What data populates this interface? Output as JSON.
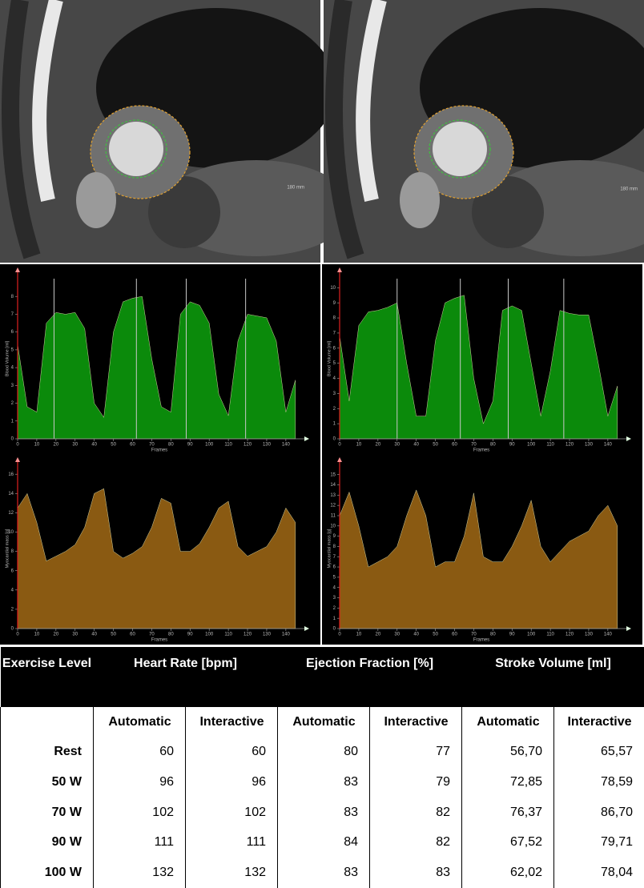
{
  "images": [
    {
      "scale_label": "180 mm"
    },
    {
      "scale_label": "180 mm"
    }
  ],
  "chart_data": [
    {
      "type": "area",
      "color": "#0b8a0b",
      "ylabel": "Blood Volume [ml]",
      "xlabel": "Frames",
      "x": [
        0,
        5,
        10,
        15,
        20,
        25,
        30,
        35,
        40,
        45,
        50,
        55,
        60,
        65,
        70,
        75,
        80,
        85,
        90,
        95,
        100,
        105,
        110,
        115,
        120,
        125,
        130,
        135,
        140,
        145
      ],
      "values": [
        5.3,
        1.8,
        1.5,
        6.5,
        7.1,
        7.0,
        7.1,
        6.2,
        2.0,
        1.2,
        6.0,
        7.7,
        7.9,
        8.0,
        4.5,
        1.8,
        1.5,
        7.0,
        7.7,
        7.5,
        6.5,
        2.5,
        1.3,
        5.5,
        7.0,
        6.9,
        6.8,
        5.5,
        1.5,
        3.3
      ],
      "markers": [
        19,
        62,
        88,
        119
      ],
      "xlim": [
        0,
        148
      ],
      "ylim": [
        0,
        9
      ],
      "xticks": [
        0,
        10,
        20,
        30,
        40,
        50,
        60,
        70,
        80,
        90,
        100,
        110,
        120,
        130,
        140
      ],
      "yticks": [
        0,
        1,
        2,
        3,
        4,
        5,
        6,
        7,
        8
      ]
    },
    {
      "type": "area",
      "color": "#0b8a0b",
      "ylabel": "Blood Volume [ml]",
      "xlabel": "Frames",
      "x": [
        0,
        5,
        10,
        15,
        20,
        25,
        30,
        35,
        40,
        45,
        50,
        55,
        60,
        65,
        70,
        75,
        80,
        85,
        90,
        95,
        100,
        105,
        110,
        115,
        120,
        125,
        130,
        135,
        140,
        145
      ],
      "values": [
        6.8,
        2.5,
        7.5,
        8.4,
        8.5,
        8.7,
        9.0,
        5.0,
        1.5,
        1.5,
        6.5,
        9.0,
        9.3,
        9.5,
        4.0,
        1.0,
        2.5,
        8.5,
        8.8,
        8.5,
        5.0,
        1.5,
        4.5,
        8.5,
        8.3,
        8.2,
        8.2,
        5.0,
        1.5,
        3.5
      ],
      "markers": [
        30,
        63,
        88,
        117
      ],
      "xlim": [
        0,
        148
      ],
      "ylim": [
        0,
        10.6
      ],
      "xticks": [
        0,
        10,
        20,
        30,
        40,
        50,
        60,
        70,
        80,
        90,
        100,
        110,
        120,
        130,
        140
      ],
      "yticks": [
        0,
        1,
        2,
        3,
        4,
        5,
        6,
        7,
        8,
        9,
        10
      ]
    },
    {
      "type": "area",
      "color": "#8a5a12",
      "ylabel": "Myocardial mass [g]",
      "xlabel": "Frames",
      "x": [
        0,
        5,
        10,
        15,
        20,
        25,
        30,
        35,
        40,
        45,
        50,
        55,
        60,
        65,
        70,
        75,
        80,
        85,
        90,
        95,
        100,
        105,
        110,
        115,
        120,
        125,
        130,
        135,
        140,
        145
      ],
      "values": [
        12.5,
        14.0,
        11.0,
        7.0,
        7.5,
        8.0,
        8.7,
        10.5,
        14.0,
        14.5,
        8.0,
        7.3,
        7.8,
        8.5,
        10.5,
        13.5,
        13.0,
        8.0,
        8.0,
        8.8,
        10.5,
        12.5,
        13.2,
        8.5,
        7.5,
        8.0,
        8.5,
        10.0,
        12.5,
        11.0
      ],
      "xlim": [
        0,
        148
      ],
      "ylim": [
        0,
        16.6
      ],
      "xticks": [
        0,
        10,
        20,
        30,
        40,
        50,
        60,
        70,
        80,
        90,
        100,
        110,
        120,
        130,
        140
      ],
      "yticks": [
        0,
        2,
        4,
        6,
        8,
        10,
        12,
        14,
        16
      ]
    },
    {
      "type": "area",
      "color": "#8a5a12",
      "ylabel": "Myocardial mass [g]",
      "xlabel": "Frames",
      "x": [
        0,
        5,
        10,
        15,
        20,
        25,
        30,
        35,
        40,
        45,
        50,
        55,
        60,
        65,
        70,
        75,
        80,
        85,
        90,
        95,
        100,
        105,
        110,
        115,
        120,
        125,
        130,
        135,
        140,
        145
      ],
      "values": [
        11,
        13.3,
        10,
        6,
        6.5,
        7,
        8,
        11,
        13.5,
        11,
        6,
        6.5,
        6.5,
        9,
        13.2,
        7,
        6.5,
        6.5,
        8,
        10,
        12.5,
        8,
        6.5,
        7.5,
        8.5,
        9,
        9.5,
        11,
        12,
        10
      ],
      "xlim": [
        0,
        148
      ],
      "ylim": [
        0,
        15.6
      ],
      "xticks": [
        0,
        10,
        20,
        30,
        40,
        50,
        60,
        70,
        80,
        90,
        100,
        110,
        120,
        130,
        140
      ],
      "yticks": [
        0,
        1,
        2,
        3,
        4,
        5,
        6,
        7,
        8,
        9,
        10,
        11,
        12,
        13,
        14,
        15
      ]
    }
  ],
  "table": {
    "headers": [
      "Exercise Level",
      "Heart Rate [bpm]",
      "Ejection Fraction [%]",
      "Stroke Volume [ml]"
    ],
    "subheaders": [
      "Automatic",
      "Interactive",
      "Automatic",
      "Interactive",
      "Automatic",
      "Interactive"
    ],
    "rows": [
      [
        "Rest",
        "60",
        "60",
        "80",
        "77",
        "56,70",
        "65,57"
      ],
      [
        "50 W",
        "96",
        "96",
        "83",
        "79",
        "72,85",
        "78,59"
      ],
      [
        "70 W",
        "102",
        "102",
        "83",
        "82",
        "76,37",
        "86,70"
      ],
      [
        "90 W",
        "111",
        "111",
        "84",
        "82",
        "67,52",
        "79,71"
      ],
      [
        "100 W",
        "132",
        "132",
        "83",
        "83",
        "62,02",
        "78,04"
      ]
    ]
  }
}
